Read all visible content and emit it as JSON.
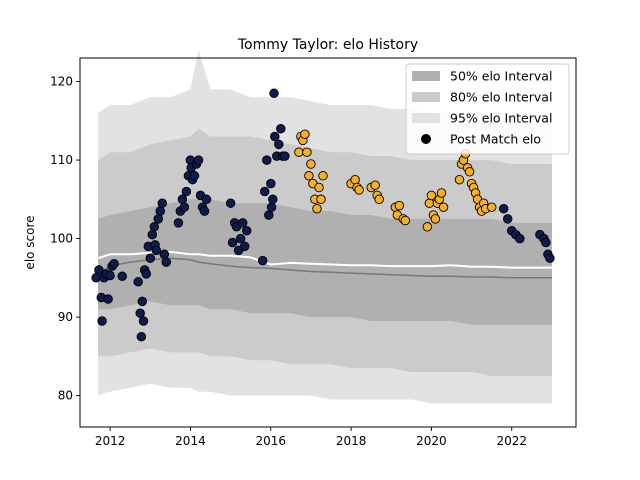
{
  "chart_data": {
    "type": "scatter",
    "title": "Tommy Taylor: elo History",
    "xlabel": "",
    "ylabel": "elo score",
    "xlim": [
      2011.25,
      2023.6
    ],
    "ylim": [
      76,
      123
    ],
    "x_ticks": [
      2012,
      2014,
      2016,
      2018,
      2020,
      2022
    ],
    "y_ticks": [
      80,
      90,
      100,
      110,
      120
    ],
    "grid": false,
    "legend_position": "top-right",
    "legend": [
      {
        "label": "50% elo Interval",
        "kind": "band",
        "color": "#b0b0b0"
      },
      {
        "label": "80% elo Interval",
        "kind": "band",
        "color": "#cbcbcb"
      },
      {
        "label": "95% elo Interval",
        "kind": "band",
        "color": "#e2e2e2"
      },
      {
        "label": "Post Match elo",
        "kind": "marker",
        "color": "#000000"
      }
    ],
    "colors": {
      "band95": "#e2e2e2",
      "band80": "#cbcbcb",
      "band50": "#b0b0b0",
      "median_line": "#777777",
      "mean_line": "#ffffff",
      "point_early": "#0d1b4f",
      "point_late": "#f5b025",
      "point_edge": "#000000"
    },
    "bands": {
      "x": [
        2011.7,
        2012.0,
        2012.5,
        2013.0,
        2013.5,
        2014.0,
        2014.2,
        2014.5,
        2015.0,
        2015.5,
        2016.0,
        2016.5,
        2017.0,
        2017.5,
        2018.0,
        2018.5,
        2019.0,
        2019.5,
        2020.0,
        2020.5,
        2021.0,
        2021.5,
        2022.0,
        2022.5,
        2023.0
      ],
      "p95_upper": [
        116,
        117,
        117,
        118,
        118,
        119,
        124,
        119,
        119,
        118,
        118,
        118,
        117.5,
        117,
        117,
        117,
        116.5,
        116.5,
        116,
        116,
        116,
        116,
        116,
        116,
        116
      ],
      "p80_upper": [
        110,
        111,
        111,
        112,
        112.5,
        113,
        114,
        113,
        113,
        113,
        112.5,
        112,
        111.5,
        111,
        111,
        110.5,
        110.5,
        110,
        110,
        110,
        110,
        110,
        109.5,
        109.5,
        109.5
      ],
      "p50_upper": [
        102.5,
        103,
        103.5,
        104,
        104.5,
        105,
        105,
        105,
        104.5,
        104.5,
        104.5,
        104,
        103.5,
        103.5,
        103,
        103,
        102.5,
        102.5,
        102.5,
        102.5,
        102.5,
        102.5,
        102,
        102,
        102
      ],
      "p50_lower": [
        91,
        91,
        91.5,
        92,
        91.5,
        91.5,
        91.5,
        91,
        91,
        90.5,
        90.5,
        90.5,
        90,
        90,
        90,
        89.5,
        89.5,
        89.5,
        89.5,
        89.5,
        89,
        89,
        89,
        89,
        89
      ],
      "p80_lower": [
        85,
        85,
        85.5,
        86,
        85.5,
        85.5,
        85.5,
        85,
        85,
        84.5,
        84.5,
        84,
        84,
        84,
        83.5,
        83.5,
        83.5,
        83,
        83,
        83,
        83,
        82.5,
        82.5,
        82.5,
        82.5
      ],
      "p95_lower": [
        80,
        80.5,
        81,
        81.5,
        81,
        81,
        80.5,
        80.5,
        80,
        80,
        80,
        80,
        80,
        79.5,
        79.5,
        79.5,
        79.5,
        79.5,
        79,
        79,
        79,
        79,
        79,
        79,
        79
      ],
      "median": [
        95.5,
        96.5,
        97,
        97.3,
        97.5,
        97.3,
        97,
        96.8,
        96.5,
        96.3,
        96.2,
        96,
        95.8,
        95.7,
        95.6,
        95.5,
        95.4,
        95.3,
        95.2,
        95.2,
        95.1,
        95.1,
        95.0,
        95.0,
        95.0
      ],
      "mean": [
        97.5,
        98,
        98,
        98.2,
        98.3,
        98,
        98,
        97.8,
        97.8,
        97.6,
        96.7,
        96.9,
        96.8,
        96.7,
        96.6,
        96.6,
        96.5,
        96.5,
        96.5,
        96.6,
        96.4,
        96.4,
        96.3,
        96.3,
        96.3
      ]
    },
    "series": [
      {
        "name": "Post Match elo",
        "color": "#0d1b4f",
        "x": [
          2011.65,
          2011.72,
          2011.78,
          2011.8,
          2011.85,
          2011.9,
          2011.95,
          2012.0,
          2012.05,
          2012.1,
          2012.3,
          2012.7,
          2012.75,
          2012.78,
          2012.8,
          2012.83,
          2012.86,
          2012.9,
          2012.95,
          2013.0,
          2013.05,
          2013.1,
          2013.12,
          2013.15,
          2013.2,
          2013.25,
          2013.3,
          2013.35,
          2013.4,
          2013.7,
          2013.75,
          2013.8,
          2013.85,
          2013.9,
          2013.95,
          2014.0,
          2014.02,
          2014.05,
          2014.1,
          2014.15,
          2014.2,
          2014.25,
          2014.3,
          2014.35,
          2014.4,
          2015.0,
          2015.05,
          2015.1,
          2015.15,
          2015.2,
          2015.25,
          2015.3,
          2015.35,
          2015.4,
          2015.8,
          2015.85,
          2015.9,
          2015.95,
          2016.0,
          2016.02,
          2016.05,
          2016.08,
          2016.1,
          2016.15,
          2016.2,
          2016.25,
          2016.3,
          2016.35,
          2021.8,
          2021.9,
          2022.0,
          2022.1,
          2022.2,
          2022.7,
          2022.8,
          2022.85,
          2022.9,
          2022.95
        ],
        "y": [
          95,
          96,
          92.5,
          89.5,
          95,
          95.5,
          92.3,
          95.3,
          96.5,
          96.8,
          95.2,
          94.5,
          90.5,
          87.5,
          92,
          89.5,
          96,
          95.5,
          99,
          97.5,
          100.5,
          101.5,
          99.2,
          98.5,
          102.5,
          103.5,
          104.5,
          98,
          97,
          102,
          103.5,
          105,
          104,
          106,
          108,
          110,
          109,
          107.5,
          108,
          109.5,
          110,
          105.5,
          104,
          103.5,
          105,
          104.5,
          99.5,
          102,
          101.5,
          98.5,
          100,
          102,
          99,
          101,
          97.2,
          106,
          110,
          103,
          107,
          104,
          105,
          118.5,
          113,
          110.5,
          112,
          114,
          110.5,
          110.5,
          103.8,
          102.5,
          101,
          100.5,
          100,
          100.5,
          100,
          99.5,
          98,
          97.5
        ]
      },
      {
        "name": "Post Match elo",
        "color": "#f5b025",
        "x": [
          2016.7,
          2016.75,
          2016.8,
          2016.85,
          2016.9,
          2016.95,
          2017.0,
          2017.05,
          2017.1,
          2017.15,
          2017.2,
          2017.25,
          2017.3,
          2018.0,
          2018.1,
          2018.15,
          2018.2,
          2018.5,
          2018.6,
          2018.65,
          2018.7,
          2019.1,
          2019.15,
          2019.2,
          2019.3,
          2019.35,
          2019.9,
          2019.95,
          2020.0,
          2020.05,
          2020.1,
          2020.15,
          2020.2,
          2020.25,
          2020.3,
          2020.7,
          2020.75,
          2020.8,
          2020.85,
          2020.9,
          2020.95,
          2021.0,
          2021.05,
          2021.1,
          2021.15,
          2021.2,
          2021.25,
          2021.3,
          2021.35,
          2021.5
        ],
        "y": [
          111,
          113,
          112.5,
          113.3,
          111,
          108,
          109.5,
          107,
          105,
          103.8,
          106.5,
          105,
          108,
          107,
          107.5,
          106.5,
          106.2,
          106.5,
          106.8,
          105.5,
          105,
          104,
          103,
          104.2,
          102.5,
          102.3,
          101.5,
          104.5,
          105.5,
          103,
          102.5,
          104.5,
          105,
          105.8,
          104,
          107.5,
          109.5,
          110,
          110.8,
          109,
          108.5,
          107,
          106.5,
          105.8,
          105,
          104,
          103.5,
          104.5,
          103.8,
          104
        ]
      }
    ]
  }
}
